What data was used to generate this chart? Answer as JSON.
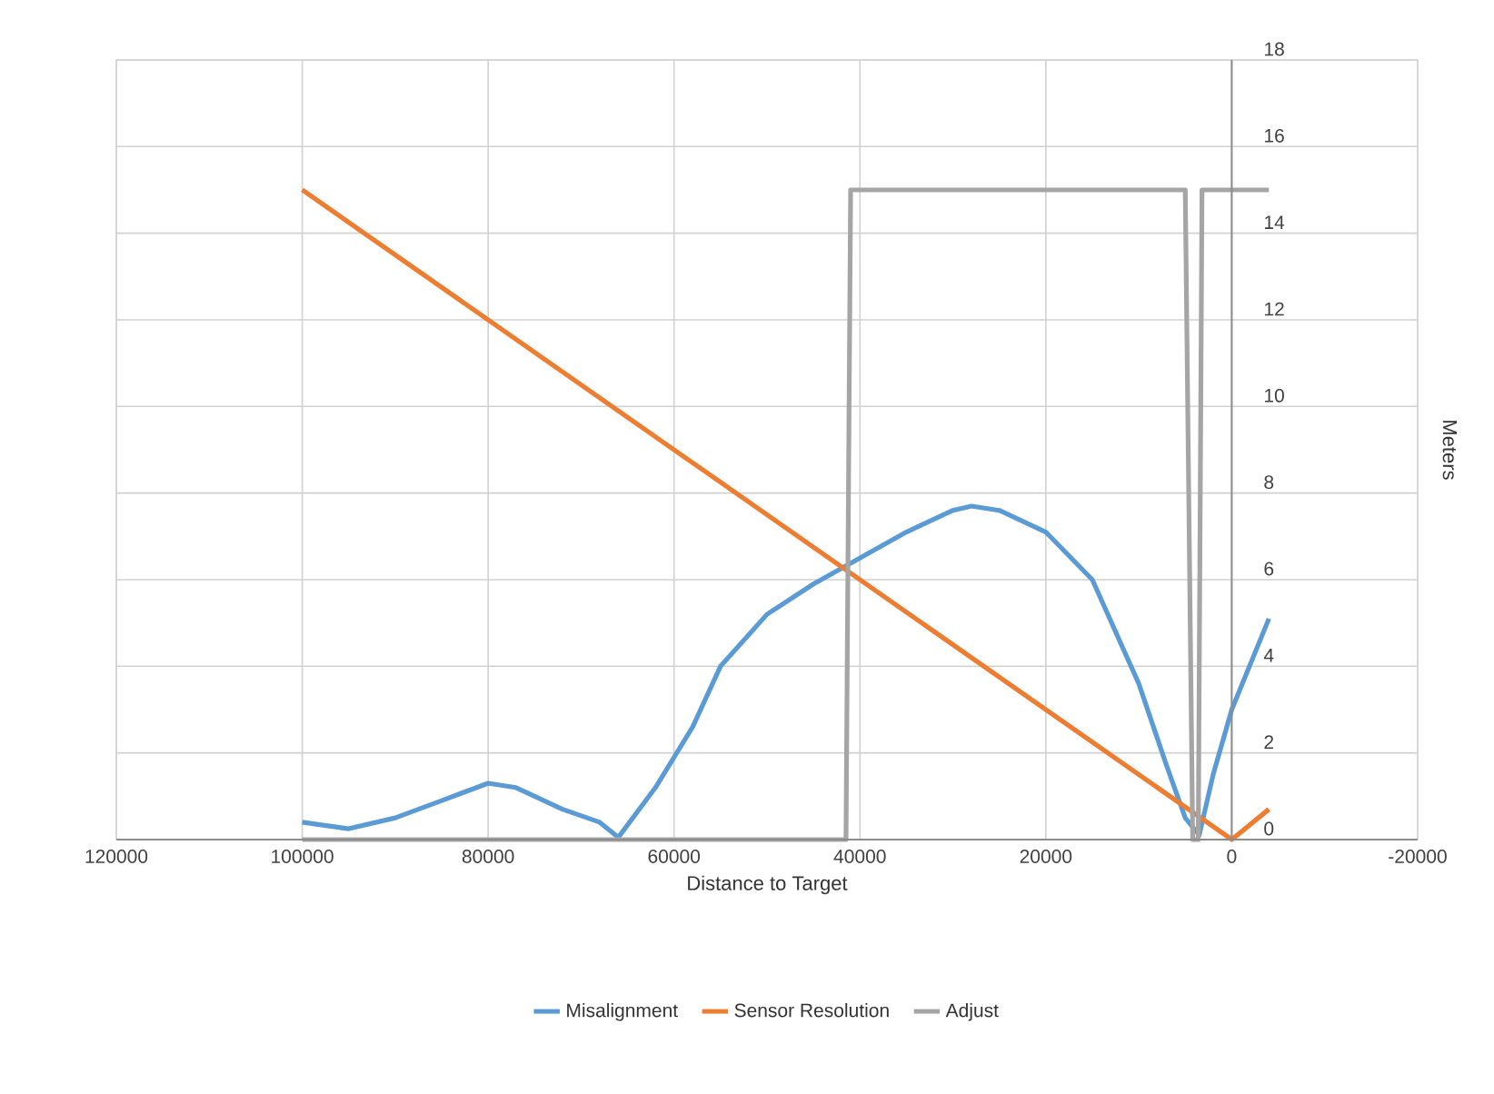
{
  "chart_data": {
    "type": "line",
    "xlabel": "Distance to Target",
    "ylabel": "Meters",
    "xlim": [
      120000,
      -20000
    ],
    "xticks": [
      120000,
      100000,
      80000,
      60000,
      40000,
      20000,
      0,
      -20000
    ],
    "ylim": [
      0,
      18
    ],
    "yticks": [
      0,
      2,
      4,
      6,
      8,
      10,
      12,
      14,
      16,
      18
    ],
    "grid": true,
    "legend": "bottom",
    "marker": "none",
    "line_style": "solid",
    "series": [
      {
        "name": "Misalignment",
        "color": "#5b9bd5",
        "x": [
          100000,
          95000,
          90000,
          85000,
          80000,
          77000,
          72000,
          68000,
          66000,
          62000,
          58000,
          55000,
          50000,
          45000,
          40000,
          35000,
          30000,
          28000,
          25000,
          20000,
          15000,
          10000,
          7000,
          5000,
          3500,
          2000,
          0,
          -4000
        ],
        "values": [
          0.4,
          0.25,
          0.5,
          0.9,
          1.3,
          1.2,
          0.7,
          0.4,
          0.05,
          1.2,
          2.6,
          4.0,
          5.2,
          5.9,
          6.5,
          7.1,
          7.6,
          7.7,
          7.6,
          7.1,
          6.0,
          3.6,
          1.7,
          0.5,
          0.1,
          1.5,
          3.0,
          5.1
        ]
      },
      {
        "name": "Sensor Resolution",
        "color": "#ed7d31",
        "x": [
          100000,
          0,
          -4000
        ],
        "values": [
          15,
          0,
          0.7
        ]
      },
      {
        "name": "Adjust",
        "color": "#a5a5a5",
        "x": [
          100000,
          41500,
          41000,
          5000,
          4200,
          3600,
          3200,
          -4000
        ],
        "values": [
          0,
          0,
          15,
          15,
          0,
          0,
          15,
          15
        ]
      }
    ]
  }
}
